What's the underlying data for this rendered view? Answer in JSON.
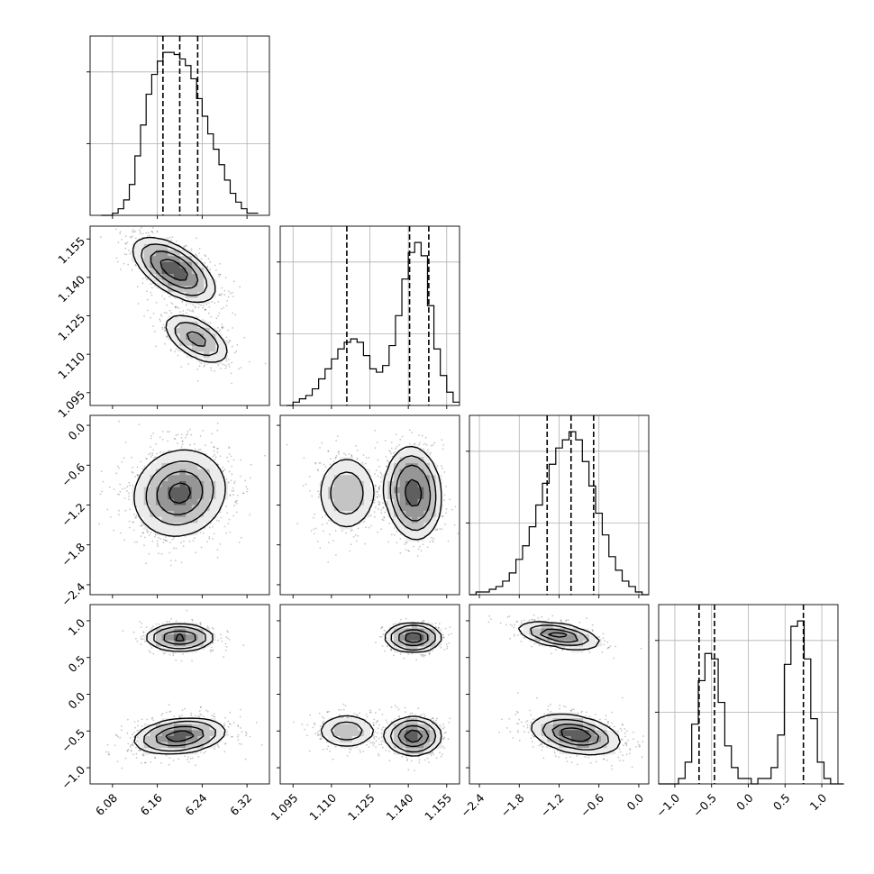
{
  "chart_data": {
    "type": "corner",
    "parameters": [
      {
        "index": 0,
        "range": [
          6.04,
          6.36
        ],
        "ticks": [
          6.08,
          6.16,
          6.24,
          6.32
        ],
        "tick_labels": [
          "6.08",
          "6.16",
          "6.24",
          "6.32"
        ],
        "quantiles": [
          6.17,
          6.2,
          6.232
        ]
      },
      {
        "index": 1,
        "range": [
          1.09,
          1.16
        ],
        "ticks": [
          1.095,
          1.11,
          1.125,
          1.14,
          1.155
        ],
        "tick_labels": [
          "1.095",
          "1.110",
          "1.125",
          "1.140",
          "1.155"
        ],
        "quantiles": [
          1.116,
          1.1405,
          1.148
        ]
      },
      {
        "index": 2,
        "range": [
          -2.55,
          0.15
        ],
        "ticks": [
          -2.4,
          -1.8,
          -1.2,
          -0.6,
          0.0
        ],
        "tick_labels": [
          "−2.4",
          "−1.8",
          "−1.2",
          "−0.6",
          "0.0"
        ],
        "quantiles": [
          -1.38,
          -1.02,
          -0.68
        ]
      },
      {
        "index": 3,
        "range": [
          -1.22,
          1.22
        ],
        "ticks": [
          -1.0,
          -0.5,
          0.0,
          0.5,
          1.0
        ],
        "tick_labels": [
          "−1.0",
          "−0.5",
          "0.0",
          "0.5",
          "1.0"
        ],
        "quantiles": [
          -0.67,
          -0.46,
          0.75
        ]
      }
    ],
    "histograms": [
      {
        "param": 0,
        "bins": [
          6.06,
          6.07,
          6.08,
          6.09,
          6.1,
          6.11,
          6.12,
          6.13,
          6.14,
          6.15,
          6.16,
          6.17,
          6.18,
          6.19,
          6.2,
          6.21,
          6.22,
          6.23,
          6.24,
          6.25,
          6.26,
          6.27,
          6.28,
          6.29,
          6.3,
          6.31,
          6.32,
          6.33,
          6.34
        ],
        "counts": [
          0,
          0,
          1,
          3,
          7,
          14,
          27,
          41,
          55,
          64,
          70,
          74,
          74,
          73,
          71,
          68,
          62,
          53,
          45,
          37,
          30,
          23,
          16,
          10,
          6,
          3,
          1,
          1,
          0
        ],
        "max": 74
      },
      {
        "param": 1,
        "bins": [
          1.0925,
          1.095,
          1.0975,
          1.1,
          1.1025,
          1.105,
          1.1075,
          1.11,
          1.1125,
          1.115,
          1.1175,
          1.12,
          1.1225,
          1.125,
          1.1275,
          1.13,
          1.1325,
          1.135,
          1.1375,
          1.14,
          1.1425,
          1.145,
          1.1475,
          1.15,
          1.1525,
          1.155,
          1.1575,
          1.16
        ],
        "counts": [
          0,
          1,
          2,
          3,
          5,
          8,
          11,
          14,
          17,
          19,
          20,
          19,
          15,
          11,
          10,
          12,
          18,
          27,
          38,
          46,
          49,
          45,
          30,
          17,
          9,
          4,
          1,
          0
        ],
        "max": 49
      },
      {
        "param": 2,
        "bins": [
          -2.55,
          -2.45,
          -2.35,
          -2.25,
          -2.15,
          -2.05,
          -1.95,
          -1.85,
          -1.75,
          -1.65,
          -1.55,
          -1.45,
          -1.35,
          -1.25,
          -1.15,
          -1.05,
          -0.95,
          -0.85,
          -0.75,
          -0.65,
          -0.55,
          -0.45,
          -0.35,
          -0.25,
          -0.15,
          -0.05,
          0.05,
          0.15
        ],
        "counts": [
          0,
          1,
          1,
          2,
          3,
          5,
          8,
          13,
          18,
          25,
          33,
          41,
          48,
          54,
          57,
          60,
          57,
          49,
          40,
          30,
          22,
          14,
          9,
          5,
          3,
          1,
          0,
          0
        ],
        "max": 60
      },
      {
        "param": 3,
        "bins": [
          -1.22,
          -1.13,
          -1.04,
          -0.95,
          -0.86,
          -0.77,
          -0.68,
          -0.59,
          -0.5,
          -0.41,
          -0.32,
          -0.23,
          -0.14,
          -0.05,
          0.04,
          0.13,
          0.22,
          0.31,
          0.4,
          0.49,
          0.58,
          0.67,
          0.76,
          0.85,
          0.94,
          1.03,
          1.12,
          1.21,
          1.3
        ],
        "counts": [
          0,
          0,
          0,
          1,
          4,
          11,
          19,
          24,
          23,
          15,
          7,
          3,
          1,
          1,
          0,
          1,
          1,
          3,
          9,
          22,
          29,
          30,
          23,
          12,
          4,
          1,
          0,
          0,
          0
        ],
        "max": 30
      }
    ],
    "joint": [
      {
        "x_param": 0,
        "y_param": 1,
        "modes": [
          {
            "center": [
              6.19,
              1.143
            ],
            "spread": [
              0.035,
              0.006
            ],
            "rho": -0.6,
            "weight": 0.7
          },
          {
            "center": [
              6.23,
              1.116
            ],
            "spread": [
              0.03,
              0.005
            ],
            "rho": -0.55,
            "weight": 0.3
          }
        ]
      },
      {
        "x_param": 0,
        "y_param": 2,
        "modes": [
          {
            "center": [
              6.2,
              -1.02
            ],
            "spread": [
              0.04,
              0.32
            ],
            "rho": 0.1,
            "weight": 1.0
          }
        ]
      },
      {
        "x_param": 1,
        "y_param": 2,
        "modes": [
          {
            "center": [
              1.142,
              -1.02
            ],
            "spread": [
              0.005,
              0.32
            ],
            "rho": -0.1,
            "weight": 0.7
          },
          {
            "center": [
              1.116,
              -1.02
            ],
            "spread": [
              0.006,
              0.3
            ],
            "rho": 0.0,
            "weight": 0.3
          }
        ]
      },
      {
        "x_param": 0,
        "y_param": 3,
        "modes": [
          {
            "center": [
              6.2,
              0.77
            ],
            "spread": [
              0.03,
              0.09
            ],
            "rho": 0.0,
            "weight": 0.35
          },
          {
            "center": [
              6.2,
              -0.57
            ],
            "spread": [
              0.04,
              0.12
            ],
            "rho": 0.25,
            "weight": 0.65
          }
        ]
      },
      {
        "x_param": 1,
        "y_param": 3,
        "modes": [
          {
            "center": [
              1.142,
              0.77
            ],
            "spread": [
              0.005,
              0.09
            ],
            "rho": 0.0,
            "weight": 0.35
          },
          {
            "center": [
              1.142,
              -0.57
            ],
            "spread": [
              0.005,
              0.12
            ],
            "rho": 0.0,
            "weight": 0.45
          },
          {
            "center": [
              1.116,
              -0.5
            ],
            "spread": [
              0.006,
              0.12
            ],
            "rho": 0.0,
            "weight": 0.2
          }
        ]
      },
      {
        "x_param": 2,
        "y_param": 3,
        "modes": [
          {
            "center": [
              -1.2,
              0.8
            ],
            "spread": [
              0.3,
              0.09
            ],
            "rho": -0.5,
            "weight": 0.35
          },
          {
            "center": [
              -0.95,
              -0.55
            ],
            "spread": [
              0.32,
              0.13
            ],
            "rho": -0.35,
            "weight": 0.65
          }
        ]
      }
    ],
    "contour_levels": [
      0.118,
      0.393,
      0.675,
      0.865
    ],
    "grid": true,
    "title": "",
    "xlabel": "",
    "ylabel": ""
  }
}
